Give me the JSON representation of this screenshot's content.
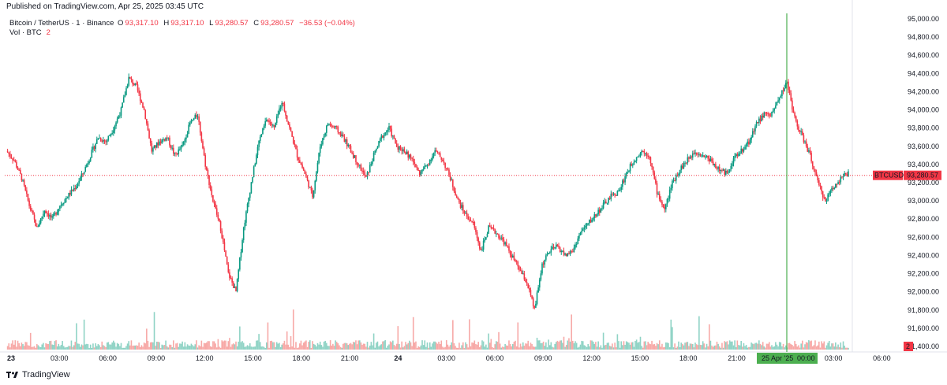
{
  "header": {
    "published": "Published on TradingView.com, Apr 25, 2025 03:45 UTC"
  },
  "legend": {
    "symbol": "Bitcoin / TetherUS · 1 · Binance",
    "open_label": "O",
    "open": "93,317.10",
    "high_label": "H",
    "high": "93,317.10",
    "low_label": "L",
    "low": "93,280.57",
    "close_label": "C",
    "close": "93,280.57",
    "change": "−36.53 (−0.04%)",
    "vol_label": "Vol · BTC",
    "vol_value": "2"
  },
  "price_tag": {
    "symbol": "BTCUSDT",
    "price": "93,280.57",
    "color": "#f23645"
  },
  "volume_tag": {
    "value": "2",
    "color": "#f23645"
  },
  "crosshair": {
    "label": "25 Apr '25",
    "time": "00:00",
    "color": "#4caf50"
  },
  "colors": {
    "up": "#089981",
    "down": "#f23645",
    "vol_up": "#8fd3c5",
    "vol_down": "#f7a9a7",
    "crosshair": "#4caf50"
  },
  "footer": {
    "brand": "TradingView",
    "logo": "tradingview-logo-icon"
  },
  "chart_data": {
    "type": "line",
    "title": "Bitcoin / TetherUS · 1 · Binance",
    "xlabel": "",
    "ylabel": "",
    "ylim": [
      91400,
      95000
    ],
    "y_ticks": [
      "95,000.00",
      "94,800.00",
      "94,600.00",
      "94,400.00",
      "94,200.00",
      "94,000.00",
      "93,800.00",
      "93,600.00",
      "93,400.00",
      "93,200.00",
      "93,000.00",
      "92,800.00",
      "92,600.00",
      "92,400.00",
      "92,200.00",
      "92,000.00",
      "91,800.00",
      "91,600.00",
      "91,400.00"
    ],
    "x_ticks": [
      "23",
      "03:00",
      "06:00",
      "09:00",
      "12:00",
      "15:00",
      "18:00",
      "21:00",
      "24",
      "03:00",
      "06:00",
      "09:00",
      "12:00",
      "15:00",
      "18:00",
      "21:00",
      "00:00",
      "03:00",
      "06:00"
    ],
    "x_ticks_bold": [
      "23",
      "24"
    ],
    "series": [
      {
        "values": [
          93550,
          93450,
          93250,
          92950,
          92700,
          92900,
          92800,
          92950,
          93050,
          93150,
          93300,
          93500,
          93700,
          93650,
          93800,
          94000,
          94350,
          94250,
          94000,
          93550,
          93650,
          93700,
          93500,
          93600,
          93850,
          93950,
          93400,
          93000,
          92700,
          92200,
          92000,
          92700,
          93200,
          93650,
          93900,
          93800,
          94100,
          93800,
          93500,
          93300,
          93050,
          93600,
          93850,
          93800,
          93700,
          93550,
          93400,
          93250,
          93500,
          93700,
          93800,
          93600,
          93550,
          93450,
          93300,
          93400,
          93550,
          93450,
          93250,
          93000,
          92850,
          92750,
          92450,
          92700,
          92650,
          92550,
          92400,
          92250,
          92100,
          91800,
          92300,
          92450,
          92500,
          92400,
          92450,
          92650,
          92750,
          92850,
          92950,
          93050,
          93100,
          93300,
          93450,
          93550,
          93500,
          93100,
          92900,
          93200,
          93350,
          93450,
          93550,
          93500,
          93450,
          93350,
          93300,
          93450,
          93550,
          93650,
          93850,
          93950,
          93950,
          94150,
          94300,
          93900,
          93700,
          93500,
          93200,
          93000,
          93150,
          93250,
          93300
        ]
      }
    ]
  }
}
